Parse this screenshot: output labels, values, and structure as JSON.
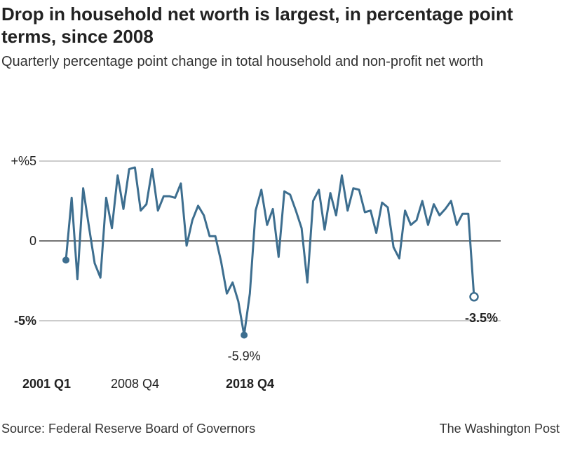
{
  "title": "Drop in household net worth is largest, in percentage point terms, since 2008",
  "subtitle": "Quarterly percentage point change in total household and non-profit net worth",
  "source": "Source: Federal Reserve Board of Governors",
  "credit": "The Washington Post",
  "colors": {
    "line": "#3d6e8f",
    "grid": "#999999",
    "zero": "#222222"
  },
  "chart_data": {
    "type": "line",
    "ylim": [
      -5.9,
      5
    ],
    "grid": true,
    "y_ticks": [
      {
        "value": 5,
        "label": "+%5",
        "bold": false
      },
      {
        "value": 0,
        "label": "0",
        "bold": false
      },
      {
        "value": -5,
        "label": "-5%",
        "bold": true
      }
    ],
    "x_labels": [
      {
        "label": "2001 Q1",
        "bold": true
      },
      {
        "label": "2008 Q4",
        "bold": false
      },
      {
        "label": "2018 Q4",
        "bold": true
      }
    ],
    "values": [
      -1.2,
      2.7,
      -2.4,
      3.3,
      0.9,
      -1.4,
      -2.3,
      2.7,
      0.8,
      4.1,
      2.0,
      4.5,
      4.6,
      1.9,
      2.3,
      4.5,
      1.9,
      2.8,
      2.8,
      2.7,
      3.6,
      -0.3,
      1.3,
      2.2,
      1.6,
      0.3,
      0.3,
      -1.3,
      -3.3,
      -2.6,
      -3.8,
      -5.9,
      -3.3,
      1.9,
      3.2,
      1.0,
      2.0,
      -1.0,
      3.1,
      2.9,
      1.9,
      0.8,
      -2.6,
      2.5,
      3.2,
      0.7,
      3.0,
      1.6,
      4.1,
      1.9,
      3.3,
      3.2,
      1.8,
      1.9,
      0.5,
      2.4,
      2.1,
      -0.4,
      -1.1,
      1.9,
      1.0,
      1.3,
      2.5,
      1.0,
      2.3,
      1.6,
      2.0,
      2.5,
      1.0,
      1.7,
      1.7,
      -3.5
    ],
    "annotations": [
      {
        "label": "-5.9%",
        "bold": false
      },
      {
        "label": "-3.5%",
        "bold": true
      }
    ]
  }
}
